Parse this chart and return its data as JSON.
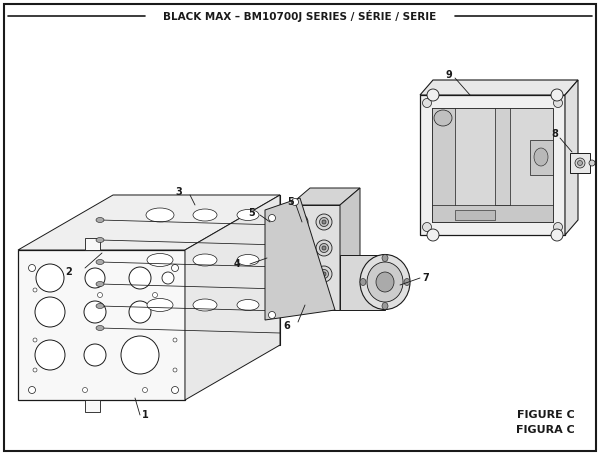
{
  "title": "BLACK MAX – BM10700J SERIES / SÉRIE / SERIE",
  "figure_label": "FIGURE C",
  "figura_label": "FIGURA C",
  "bg_color": "#ffffff",
  "lc": "#1a1a1a",
  "lw": 0.7,
  "thin": 0.5
}
